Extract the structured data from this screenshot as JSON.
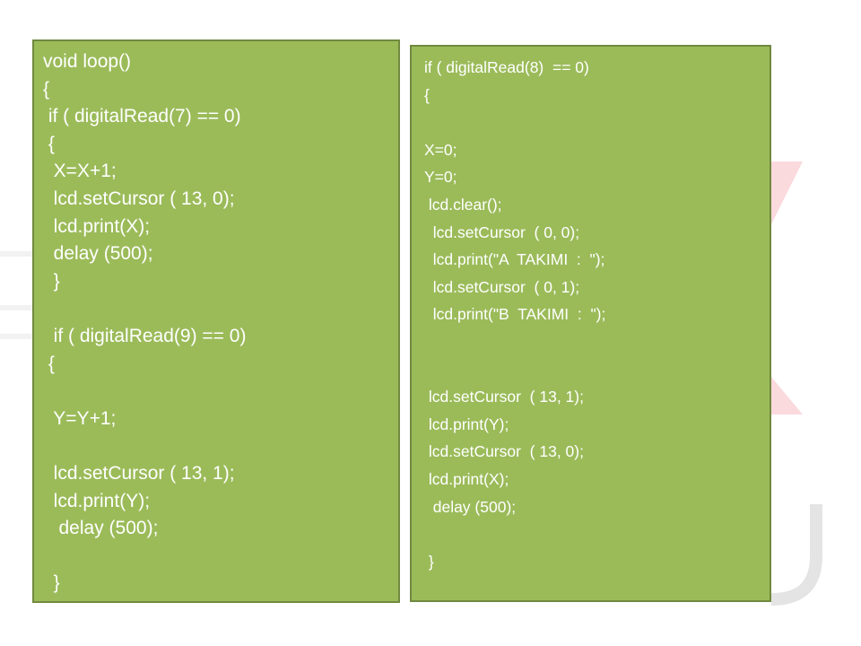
{
  "left_code": {
    "lines": [
      "void loop()",
      "{",
      " if ( digitalRead(7) == 0)",
      " {",
      "  X=X+1;",
      "  lcd.setCursor ( 13, 0);",
      "  lcd.print(X);",
      "  delay (500);",
      "  }",
      "",
      "  if ( digitalRead(9) == 0)",
      " {",
      "",
      "  Y=Y+1;",
      "",
      "  lcd.setCursor ( 13, 1);",
      "  lcd.print(Y);",
      "   delay (500);",
      "",
      "  }"
    ]
  },
  "right_code": {
    "lines": [
      "if ( digitalRead(8)  == 0)",
      "{",
      "",
      "X=0;",
      "Y=0;",
      " lcd.clear();",
      "  lcd.setCursor  ( 0, 0);",
      "  lcd.print(\"A  TAKIMI  :  \");",
      "  lcd.setCursor  ( 0, 1);",
      "  lcd.print(\"B  TAKIMI  :  \");",
      "",
      "",
      " lcd.setCursor  ( 13, 1);",
      " lcd.print(Y);",
      " lcd.setCursor  ( 13, 0);",
      " lcd.print(X);",
      "  delay (500);",
      "",
      " }"
    ]
  },
  "colors": {
    "box_fill": "#9bbb59",
    "box_border": "#71893f",
    "text": "#ffffff",
    "watermark_pink": "#f8d7da",
    "watermark_grey": "#e6e6e6"
  }
}
